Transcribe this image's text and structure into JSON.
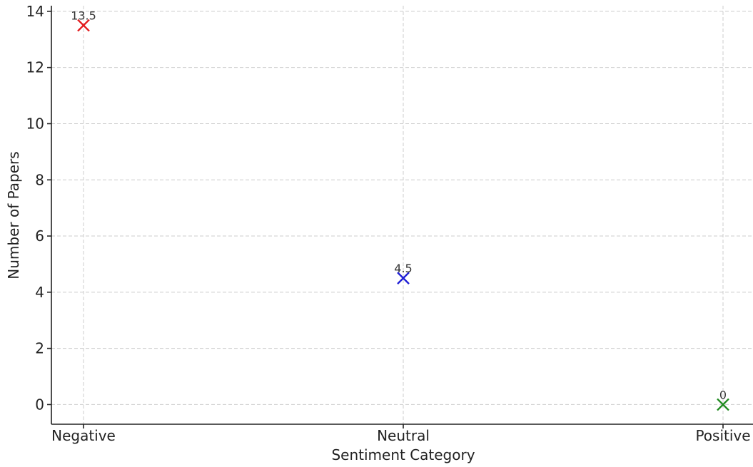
{
  "chart_data": {
    "type": "scatter",
    "title": "",
    "xlabel": "Sentiment Category",
    "ylabel": "Number of Papers",
    "categories": [
      "Negative",
      "Neutral",
      "Positive"
    ],
    "values": [
      13.5,
      4.5,
      0
    ],
    "data_labels": [
      "13.5",
      "4.5",
      "0"
    ],
    "point_colors": [
      "#e31a1c",
      "#1f1fd6",
      "#1f8a1f"
    ],
    "marker": "x",
    "ylim": [
      -0.7,
      14.2
    ],
    "yticks": [
      0,
      2,
      4,
      6,
      8,
      10,
      12,
      14
    ],
    "grid": true,
    "legend": "none"
  }
}
